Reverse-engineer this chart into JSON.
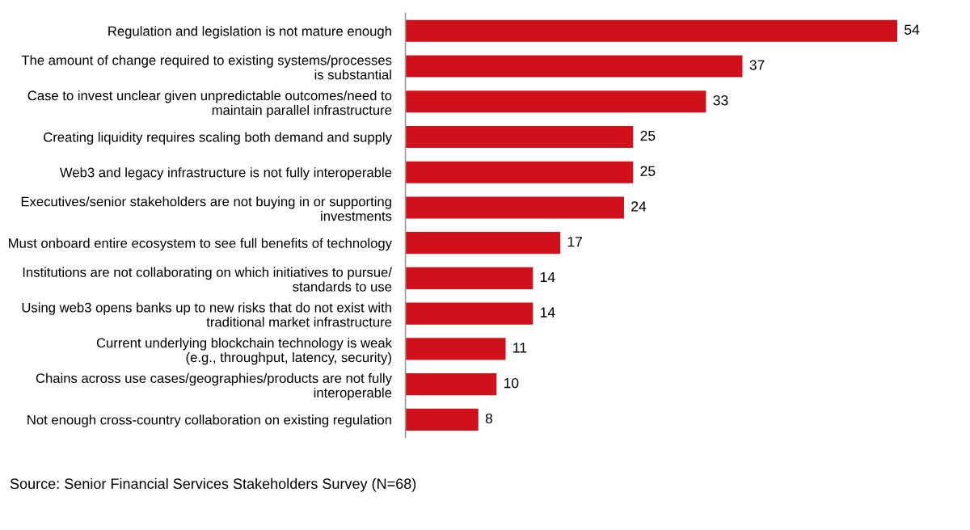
{
  "chart_data": {
    "type": "bar",
    "orientation": "horizontal",
    "data_labels": true,
    "color": "#d0101b",
    "categories": [
      "Regulation and legislation is not mature enough",
      "The amount of change required to existing systems/processes\nis substantial",
      "Case to invest unclear given unpredictable outcomes/need to\nmaintain parallel infrastructure",
      "Creating liquidity requires scaling both demand and supply",
      "Web3 and legacy infrastructure is not fully interoperable",
      "Executives/senior stakeholders are not buying in or supporting\ninvestments",
      "Must onboard entire ecosystem to see full benefits of technology",
      "Institutions are not collaborating on which initiatives to pursue/\nstandards to use",
      "Using web3 opens banks up to new risks that do not exist with\ntraditional market infrastructure",
      "Current underlying blockchain technology is weak\n(e.g., throughput, latency, security)",
      "Chains across use cases/geographies/products are not fully\ninteroperable",
      "Not enough cross-country collaboration on existing regulation"
    ],
    "values": [
      54,
      37,
      33,
      25,
      25,
      24,
      17,
      14,
      14,
      11,
      10,
      8
    ],
    "annotations": [
      "Source: Senior Financial Services Stakeholders Survey (N=68)"
    ]
  }
}
